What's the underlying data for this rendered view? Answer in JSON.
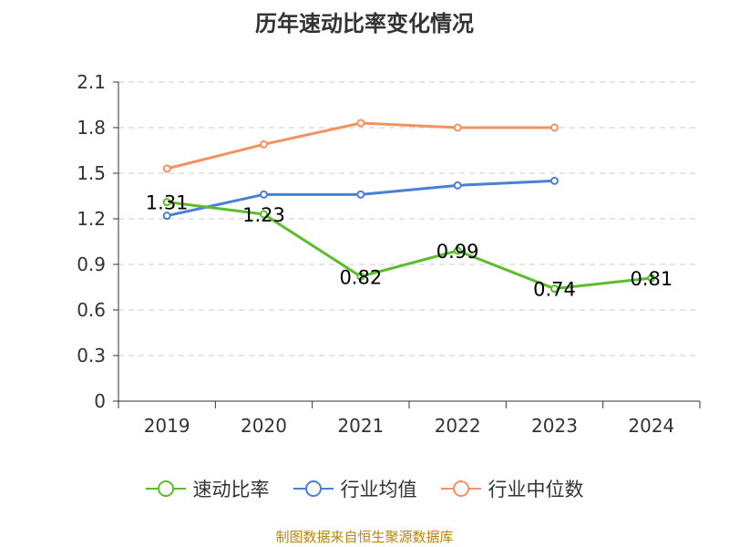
{
  "title": "历年速动比率变化情况",
  "source": "制图数据来自恒生聚源数据库",
  "chart_data": {
    "type": "line",
    "categories": [
      "2019",
      "2020",
      "2021",
      "2022",
      "2023",
      "2024"
    ],
    "y_ticks": [
      "0",
      "0.3",
      "0.6",
      "0.9",
      "1.2",
      "1.5",
      "1.8",
      "2.1"
    ],
    "ylim": [
      0,
      2.1
    ],
    "grid": true,
    "legend_position": "bottom",
    "series": [
      {
        "name": "速动比率",
        "color": "#5bbd2b",
        "values": [
          1.31,
          1.23,
          0.82,
          0.99,
          0.74,
          0.81
        ],
        "labels": [
          "1.31",
          "1.23",
          "0.82",
          "0.99",
          "0.74",
          "0.81"
        ]
      },
      {
        "name": "行业均值",
        "color": "#4a7fd9",
        "values": [
          1.22,
          1.36,
          1.36,
          1.42,
          1.45,
          null
        ]
      },
      {
        "name": "行业中位数",
        "color": "#f59160",
        "values": [
          1.53,
          1.69,
          1.83,
          1.8,
          1.8,
          null
        ]
      }
    ]
  }
}
